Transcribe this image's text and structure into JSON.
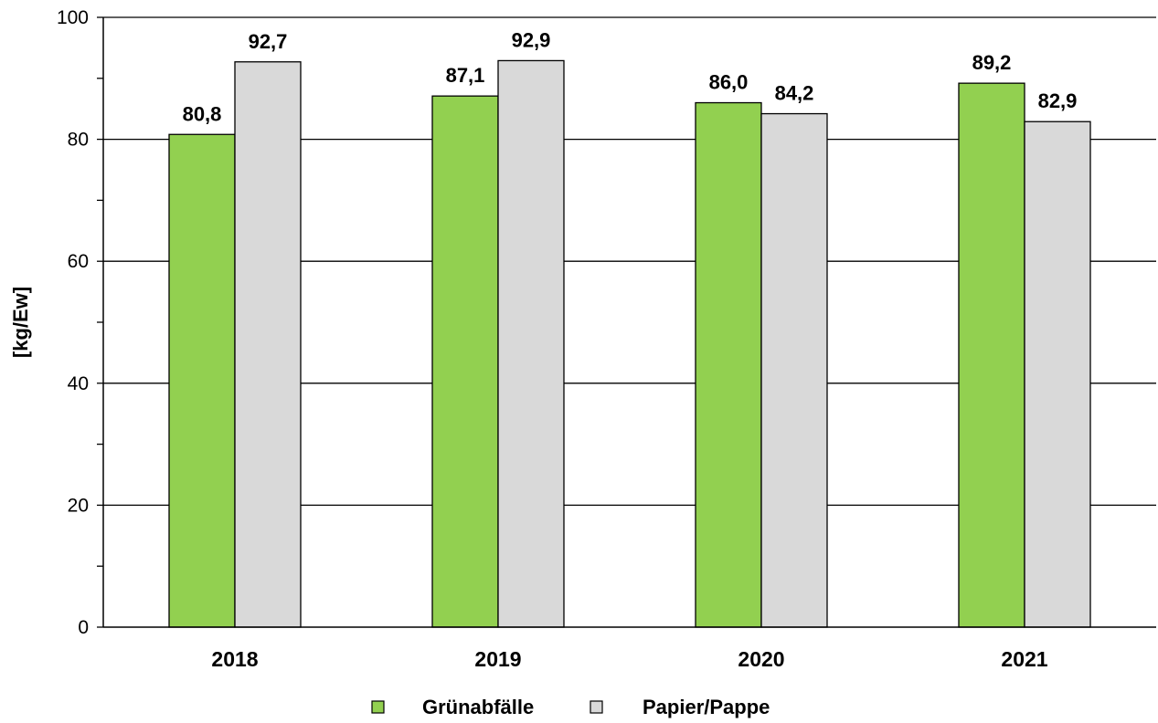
{
  "chart_data": {
    "type": "bar",
    "categories": [
      "2018",
      "2019",
      "2020",
      "2021"
    ],
    "series": [
      {
        "name": "Grünabfälle",
        "values": [
          80.8,
          87.1,
          86.0,
          89.2
        ],
        "labels": [
          "80,8",
          "87,1",
          "86,0",
          "89,2"
        ],
        "color": "#92d050"
      },
      {
        "name": "Papier/Pappe",
        "values": [
          92.7,
          92.9,
          84.2,
          82.9
        ],
        "labels": [
          "92,7",
          "92,9",
          "84,2",
          "82,9"
        ],
        "color": "#d9d9d9"
      }
    ],
    "ylabel": "[kg/Ew]",
    "ylim": [
      0,
      100
    ],
    "yticks": [
      0,
      20,
      40,
      60,
      80,
      100
    ],
    "ytick_labels": [
      "0",
      "20",
      "40",
      "60",
      "80",
      "100"
    ],
    "grid": true,
    "legend_position": "bottom"
  }
}
